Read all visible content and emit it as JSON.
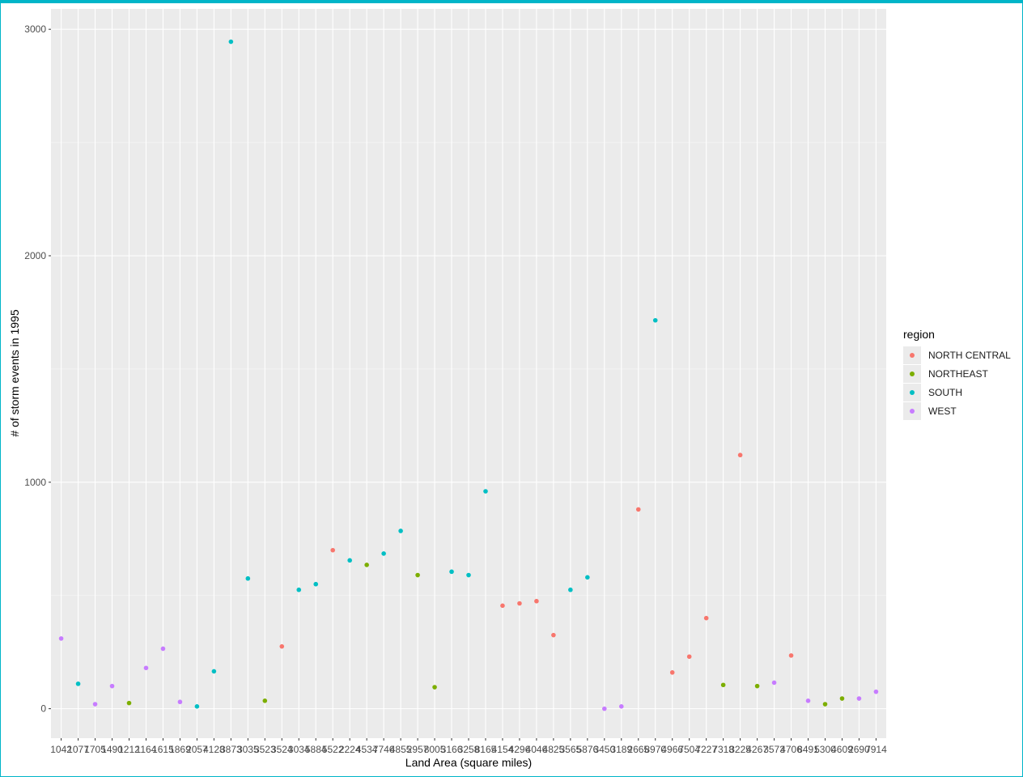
{
  "chart_data": {
    "type": "scatter",
    "xlabel": "Land Area (square miles)",
    "ylabel": "# of storm events in 1995",
    "ylim": [
      -130,
      3090
    ],
    "yticks": [
      0,
      1000,
      2000,
      3000
    ],
    "grid": true,
    "legend": {
      "title": "region",
      "placement": "right"
    },
    "categories": [
      "1042",
      "1077",
      "1705",
      "1490",
      "1212",
      "1164",
      "1615",
      "1869",
      "2057",
      "4128",
      "3873",
      "3035",
      "3523",
      "3524",
      "3034",
      "5884",
      "5522",
      "2224",
      "4534",
      "7746",
      "4855",
      "2957",
      "8005",
      "3166",
      "3258",
      "8165",
      "4154",
      "4296",
      "4046",
      "4825",
      "3565",
      "5876",
      "3450",
      "3189",
      "2665",
      "8970",
      "4966",
      "7504",
      "7227",
      "7318",
      "3225",
      "4267",
      "3573",
      "4706",
      "8491",
      "5300",
      "4609",
      "2690",
      "7914"
    ],
    "series": [
      {
        "name": "NORTH CENTRAL",
        "color": "#F8766D",
        "points": [
          [
            "3524",
            275
          ],
          [
            "5522",
            700
          ],
          [
            "4154",
            455
          ],
          [
            "4296",
            465
          ],
          [
            "4046",
            475
          ],
          [
            "4825",
            325
          ],
          [
            "2665",
            880
          ],
          [
            "4966",
            160
          ],
          [
            "7504",
            230
          ],
          [
            "7227",
            400
          ],
          [
            "3225",
            1120
          ],
          [
            "4706",
            235
          ]
        ]
      },
      {
        "name": "NORTHEAST",
        "color": "#7CAE00",
        "points": [
          [
            "1212",
            25
          ],
          [
            "3523",
            35
          ],
          [
            "4534",
            635
          ],
          [
            "2957",
            590
          ],
          [
            "8005",
            95
          ],
          [
            "7318",
            105
          ],
          [
            "4267",
            100
          ],
          [
            "5300",
            20
          ],
          [
            "4609",
            45
          ]
        ]
      },
      {
        "name": "SOUTH",
        "color": "#00BFC4",
        "points": [
          [
            "1077",
            110
          ],
          [
            "2057",
            10
          ],
          [
            "4128",
            165
          ],
          [
            "3873",
            2945
          ],
          [
            "3035",
            575
          ],
          [
            "3034",
            525
          ],
          [
            "5884",
            550
          ],
          [
            "2224",
            655
          ],
          [
            "7746",
            685
          ],
          [
            "4855",
            785
          ],
          [
            "3166",
            605
          ],
          [
            "3258",
            590
          ],
          [
            "8165",
            960
          ],
          [
            "3565",
            525
          ],
          [
            "5876",
            580
          ],
          [
            "8970",
            1715
          ]
        ]
      },
      {
        "name": "WEST",
        "color": "#C77CFF",
        "points": [
          [
            "1042",
            310
          ],
          [
            "1705",
            20
          ],
          [
            "1490",
            100
          ],
          [
            "1164",
            180
          ],
          [
            "1615",
            265
          ],
          [
            "1869",
            30
          ],
          [
            "3450",
            0
          ],
          [
            "3189",
            10
          ],
          [
            "3573",
            115
          ],
          [
            "8491",
            35
          ],
          [
            "2690",
            45
          ],
          [
            "7914",
            75
          ]
        ]
      }
    ]
  }
}
